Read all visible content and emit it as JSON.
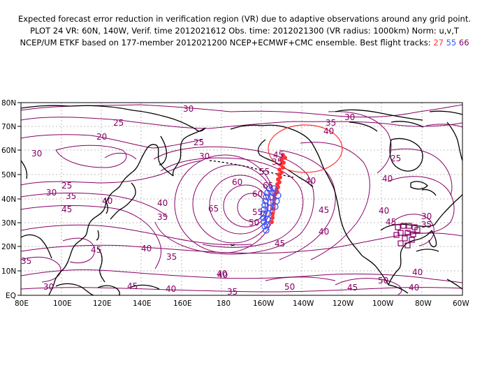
{
  "title": {
    "line1": "Expected forecast error reduction in verification region (VR) due to adaptive observations around any grid point.",
    "line2": "PLOT 24 VR: 60N, 140W, Verif. time 2012021612 Obs. time: 2012021300 (VR radius: 1000km) Norm: u,v,T",
    "line3_prefix": "NCEP/UM ETKF based on 177-member 2012021200 NCEP+ECMWF+CMC ensemble. Best flight tracks:",
    "track1": "27",
    "track2": "55",
    "track3": "66"
  },
  "axes": {
    "lat_labels": [
      "80N",
      "70N",
      "60N",
      "50N",
      "40N",
      "30N",
      "20N",
      "10N",
      "EQ"
    ],
    "lon_labels": [
      "80E",
      "100E",
      "120E",
      "140E",
      "160E",
      "180",
      "160W",
      "140W",
      "120W",
      "100W",
      "80W",
      "60W"
    ]
  },
  "contour_labels": [
    "30",
    "25",
    "20",
    "30",
    "25",
    "30",
    "35",
    "45",
    "40",
    "25",
    "30",
    "35",
    "60",
    "65",
    "55",
    "45",
    "65",
    "50",
    "55",
    "60",
    "40",
    "35",
    "40",
    "45",
    "45",
    "40",
    "35",
    "45",
    "40",
    "35",
    "30",
    "45",
    "40",
    "35",
    "40",
    "50",
    "45",
    "50",
    "40",
    "40",
    "45",
    "40",
    "35",
    "30",
    "40",
    "25",
    "40",
    "30",
    "35",
    "40"
  ],
  "colors": {
    "contour": "#880066",
    "coast": "#000000",
    "track_red": "#ff3333",
    "track_blue": "#3355ff",
    "track_purple": "#880066",
    "vr_circle": "#ff3333"
  }
}
